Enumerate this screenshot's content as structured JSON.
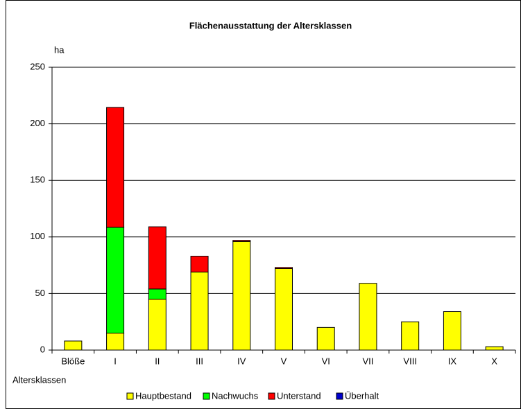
{
  "chart_data": {
    "type": "stacked_bar",
    "title": "Flächenausstattung der Altersklassen",
    "y_label": "ha",
    "x_label": "Altersklassen",
    "categories": [
      "Blöße",
      "I",
      "II",
      "III",
      "IV",
      "V",
      "VI",
      "VII",
      "VIII",
      "IX",
      "X"
    ],
    "series": [
      {
        "name": "Hauptbestand",
        "color": "#ffff00",
        "values": [
          8,
          15,
          45,
          69,
          96,
          72,
          20,
          59,
          25,
          34,
          3
        ]
      },
      {
        "name": "Nachwuchs",
        "color": "#00ff00",
        "values": [
          0,
          93.5,
          9,
          0,
          0,
          0,
          0,
          0,
          0,
          0,
          0
        ]
      },
      {
        "name": "Unterstand",
        "color": "#ff0000",
        "values": [
          0,
          106,
          55,
          14,
          1,
          1,
          0,
          0,
          0,
          0,
          0
        ]
      },
      {
        "name": "Überhalt",
        "color": "#0000cc",
        "values": [
          0,
          0,
          0,
          0,
          0,
          0,
          0,
          0,
          0,
          0,
          0
        ]
      }
    ],
    "ylim": [
      0,
      250
    ],
    "yticks": [
      0,
      50,
      100,
      150,
      200,
      250
    ],
    "grid": true,
    "legend": "bottom"
  }
}
